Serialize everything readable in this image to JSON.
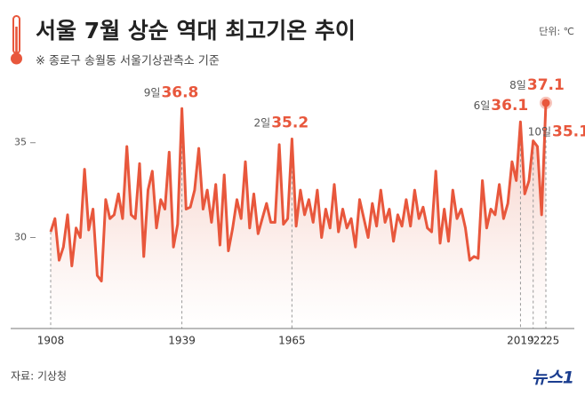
{
  "chart_data": {
    "type": "area",
    "title": "서울 7월 상순 역대 최고기온 추이",
    "subtitle": "※ 종로구 송월동 서울기상관측소 기준",
    "unit": "단위: ℃",
    "source": "자료: 기상청",
    "logo": "뉴스1",
    "color": "#e8573c",
    "x": [
      1908,
      1909,
      1910,
      1911,
      1912,
      1913,
      1914,
      1915,
      1916,
      1917,
      1918,
      1919,
      1920,
      1921,
      1922,
      1923,
      1924,
      1925,
      1926,
      1927,
      1928,
      1929,
      1930,
      1931,
      1932,
      1933,
      1934,
      1935,
      1936,
      1937,
      1938,
      1939,
      1940,
      1941,
      1942,
      1943,
      1944,
      1945,
      1946,
      1947,
      1948,
      1949,
      1950,
      1951,
      1952,
      1953,
      1954,
      1955,
      1956,
      1957,
      1958,
      1959,
      1960,
      1961,
      1962,
      1963,
      1964,
      1965,
      1966,
      1967,
      1968,
      1969,
      1970,
      1971,
      1972,
      1973,
      1974,
      1975,
      1976,
      1977,
      1978,
      1979,
      1980,
      1981,
      1982,
      1983,
      1984,
      1985,
      1986,
      1987,
      1988,
      1989,
      1990,
      1991,
      1992,
      1993,
      1994,
      1995,
      1996,
      1997,
      1998,
      1999,
      2000,
      2001,
      2002,
      2003,
      2004,
      2005,
      2006,
      2007,
      2008,
      2009,
      2010,
      2011,
      2012,
      2013,
      2014,
      2015,
      2016,
      2017,
      2018,
      2019,
      2020,
      2021,
      2022,
      2023,
      2024,
      2025
    ],
    "values": [
      30.3,
      31.0,
      28.8,
      29.5,
      31.2,
      28.5,
      30.5,
      30.0,
      33.6,
      30.4,
      31.5,
      28.0,
      27.7,
      32.0,
      31.0,
      31.2,
      32.3,
      31.0,
      34.8,
      31.2,
      31.0,
      33.9,
      29.0,
      32.5,
      33.5,
      30.5,
      32.0,
      31.5,
      34.5,
      29.5,
      30.7,
      36.8,
      31.5,
      31.6,
      32.5,
      34.7,
      31.5,
      32.5,
      30.8,
      32.8,
      29.6,
      33.3,
      29.3,
      30.5,
      32.0,
      31.0,
      34.0,
      30.5,
      32.3,
      30.2,
      31.0,
      31.8,
      30.8,
      30.8,
      34.9,
      30.7,
      31.0,
      35.2,
      30.6,
      32.5,
      31.2,
      32.0,
      30.8,
      32.5,
      30.0,
      31.5,
      30.5,
      32.8,
      30.3,
      31.5,
      30.5,
      31.0,
      29.5,
      32.0,
      31.0,
      30.0,
      31.8,
      30.6,
      32.5,
      30.8,
      31.5,
      29.8,
      31.2,
      30.6,
      32.0,
      30.6,
      32.5,
      31.0,
      31.6,
      30.5,
      30.3,
      33.5,
      29.7,
      31.5,
      29.8,
      32.5,
      31.0,
      31.5,
      30.5,
      28.8,
      29.0,
      28.9,
      33.0,
      30.5,
      31.5,
      31.2,
      32.8,
      31.0,
      31.8,
      34.0,
      33.0,
      36.1,
      32.3,
      33.0,
      35.1,
      34.8,
      31.2,
      37.1
    ],
    "xlim": [
      1908,
      2025
    ],
    "xticks": [
      1908,
      1939,
      1965,
      2019,
      {
        "value": 2022,
        "label": "'22"
      },
      {
        "value": 2025,
        "label": "'25"
      }
    ],
    "ylim": [
      25.2,
      38.5
    ],
    "yticks": [
      30,
      35
    ],
    "annotations": [
      {
        "x": 1939,
        "label": "9일"
      },
      {
        "x": 1965,
        "label": "2일"
      },
      {
        "x": 2019,
        "label": "6일"
      },
      {
        "x": 2025,
        "label": "8일"
      },
      {
        "x": 2022,
        "label": "10일"
      }
    ]
  }
}
